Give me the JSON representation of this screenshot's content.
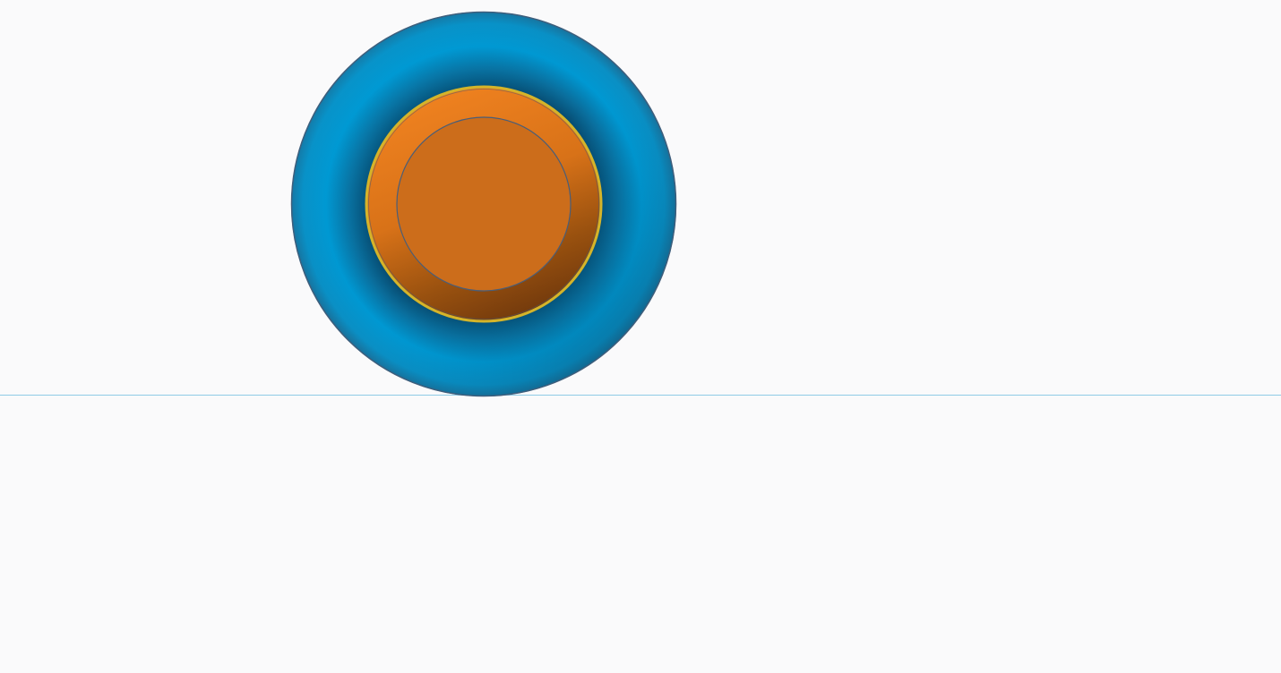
{
  "viewport": {
    "background": "#fafafb",
    "ground_line_color": "#8fcbe6"
  },
  "model": {
    "shapes": [
      {
        "name": "torus",
        "color": "#0095cf",
        "shade": "#075782"
      },
      {
        "name": "orange-ring",
        "color": "#f07f1f",
        "shade": "#7c3f0f"
      },
      {
        "name": "orange-disc",
        "color": "#cc6d1b"
      },
      {
        "name": "selection-outline",
        "color": "#d4b42a"
      },
      {
        "name": "edge-outline",
        "color": "#3e5e7c"
      }
    ]
  }
}
